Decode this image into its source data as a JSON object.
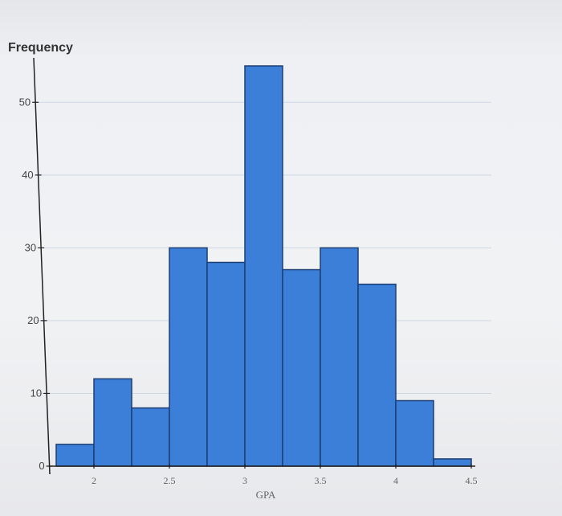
{
  "chart_data": {
    "type": "bar",
    "subtype": "histogram",
    "ylabel": "Frequency",
    "xlabel": "GPA",
    "xlim": [
      1.75,
      4.5
    ],
    "ylim": [
      0,
      55
    ],
    "yticks": [
      0,
      10,
      20,
      30,
      40,
      50
    ],
    "xticks": [
      "2",
      "2.5",
      "3",
      "3.5",
      "4",
      "4.5"
    ],
    "grid": "horizontal",
    "bar_color": "#3b7fd9",
    "bins": [
      {
        "start": 1.75,
        "end": 2.0,
        "value": 3
      },
      {
        "start": 2.0,
        "end": 2.25,
        "value": 12
      },
      {
        "start": 2.25,
        "end": 2.5,
        "value": 8
      },
      {
        "start": 2.5,
        "end": 2.75,
        "value": 30
      },
      {
        "start": 2.75,
        "end": 3.0,
        "value": 28
      },
      {
        "start": 3.0,
        "end": 3.25,
        "value": 55
      },
      {
        "start": 3.25,
        "end": 3.5,
        "value": 27
      },
      {
        "start": 3.5,
        "end": 3.75,
        "value": 30
      },
      {
        "start": 3.75,
        "end": 4.0,
        "value": 25
      },
      {
        "start": 4.0,
        "end": 4.25,
        "value": 9
      },
      {
        "start": 4.25,
        "end": 4.5,
        "value": 1
      }
    ]
  }
}
